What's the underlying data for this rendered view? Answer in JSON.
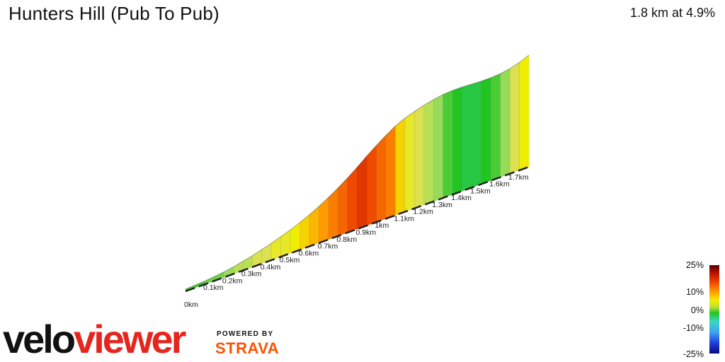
{
  "header": {
    "title": "Hunters Hill (Pub To Pub)",
    "summary": "1.8 km at 4.9%"
  },
  "chart_data": {
    "type": "area",
    "xlabel": "",
    "ylabel": "",
    "x_tick_labels": [
      "0km",
      "0.1km",
      "0.2km",
      "0.3km",
      "0.4km",
      "0.5km",
      "0.6km",
      "0.7km",
      "0.8km",
      "0.9km",
      "1km",
      "1.1km",
      "1.2km",
      "1.3km",
      "1.4km",
      "1.5km",
      "1.6km",
      "1.7km"
    ],
    "distance_km": [
      0,
      0.05,
      0.1,
      0.15,
      0.2,
      0.25,
      0.3,
      0.35,
      0.4,
      0.45,
      0.5,
      0.55,
      0.6,
      0.65,
      0.7,
      0.75,
      0.8,
      0.85,
      0.9,
      0.95,
      1.0,
      1.05,
      1.1,
      1.15,
      1.2,
      1.25,
      1.3,
      1.35,
      1.4,
      1.45,
      1.5,
      1.55,
      1.6,
      1.65,
      1.7,
      1.75,
      1.8
    ],
    "gradient_pct": [
      1,
      1,
      2,
      2,
      3,
      4,
      4,
      5,
      5,
      6,
      6,
      7,
      8,
      9,
      10,
      11,
      12,
      13,
      14,
      13,
      12,
      11,
      8,
      6,
      5,
      4,
      3,
      1,
      0,
      -1,
      -1,
      0,
      1,
      3,
      5,
      7,
      6
    ],
    "gradient_scale": {
      "labels": [
        "25%",
        "10%",
        "0%",
        "-10%",
        "-25%"
      ],
      "range": [
        -25,
        25
      ]
    }
  },
  "branding": {
    "velo": "velo",
    "viewer": "viewer",
    "powered_by": "POWERED BY",
    "strava": "STRAVA"
  }
}
